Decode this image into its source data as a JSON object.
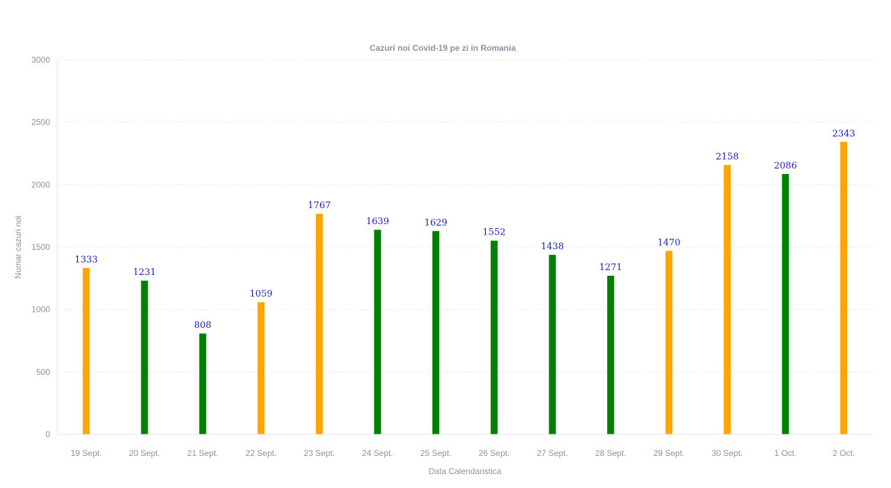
{
  "chart_data": {
    "type": "bar",
    "title": "Cazuri noi Covid-19 pe zi in Romania",
    "xlabel": "Data Calendaristica",
    "ylabel": "Numar cazuri noi",
    "ylim": [
      0,
      3000
    ],
    "yticks": [
      0,
      500,
      1000,
      1500,
      2000,
      2500,
      3000
    ],
    "grid": true,
    "categories": [
      "19 Sept.",
      "20 Sept.",
      "21 Sept.",
      "22 Sept.",
      "23 Sept.",
      "24 Sept.",
      "25 Sept.",
      "26 Sept.",
      "27 Sept.",
      "28 Sept.",
      "29 Sept.",
      "30 Sept.",
      "1 Oct.",
      "2 Oct."
    ],
    "values": [
      1333,
      1231,
      808,
      1059,
      1767,
      1639,
      1629,
      1552,
      1438,
      1271,
      1470,
      2158,
      2086,
      2343
    ],
    "bar_colors": [
      "#ffa500",
      "#008000",
      "#008000",
      "#ffa500",
      "#ffa500",
      "#008000",
      "#008000",
      "#008000",
      "#008000",
      "#008000",
      "#ffa500",
      "#ffa500",
      "#008000",
      "#ffa500"
    ]
  }
}
